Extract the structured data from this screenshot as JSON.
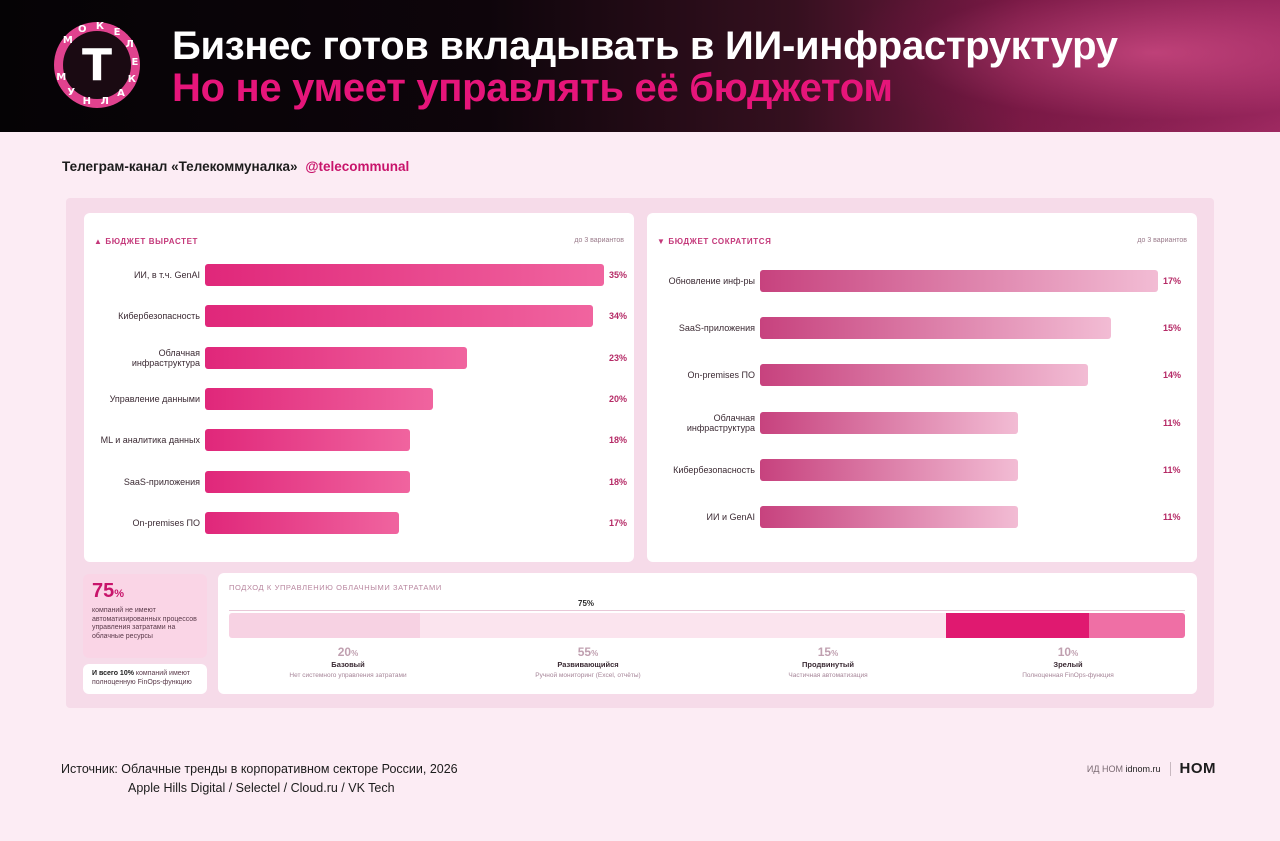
{
  "header": {
    "title": "Бизнес готов вкладывать в ИИ-инфраструктуру",
    "subtitle": "Но не умеет управлять её бюджетом",
    "logo_letter": "Т",
    "logo_ring": [
      "М",
      "О",
      "К",
      "Е",
      "Л",
      "Е",
      "К",
      "А",
      "Л",
      "Н",
      "У",
      "М"
    ]
  },
  "channel": {
    "text": "Телеграм-канал  «Телекоммуналка»",
    "handle": "@telecommunal"
  },
  "chart_data": [
    {
      "type": "bar",
      "title": "БЮДЖЕТ ВЫРАСТЕТ",
      "note": "до 3 вариантов",
      "categories": [
        "ИИ, в т.ч. GenAI",
        "Кибербезопасность",
        "Облачная\nинфраструктура",
        "Управление данными",
        "ML и аналитика данных",
        "SaaS-приложения",
        "On-premises ПО"
      ],
      "values": [
        35,
        34,
        23,
        20,
        18,
        18,
        17
      ],
      "labels": [
        "35%",
        "34%",
        "23%",
        "20%",
        "18%",
        "18%",
        "17%"
      ],
      "xlim": [
        0,
        35
      ]
    },
    {
      "type": "bar",
      "title": "БЮДЖЕТ СОКРАТИТСЯ",
      "note": "до 3 вариантов",
      "categories": [
        "Обновление инф-ры",
        "SaaS-приложения",
        "On-premises ПО",
        "Облачная\nинфраструктура",
        "Кибербезопасность",
        "ИИ и GenAI"
      ],
      "values": [
        17,
        15,
        14,
        11,
        11,
        11
      ],
      "labels": [
        "17%",
        "15%",
        "14%",
        "11%",
        "11%",
        "11%"
      ],
      "xlim": [
        0,
        17
      ]
    },
    {
      "type": "bar",
      "title": "ПОДХОД К УПРАВЛЕНИЮ ОБЛАЧНЫМИ ЗАТРАТАМИ",
      "bracket_label": "75%",
      "stages": [
        {
          "pct": "20",
          "unit": "%",
          "name": "Базовый",
          "desc": "Нет системного управления затратами",
          "value": 20,
          "color": "#f7d2e3"
        },
        {
          "pct": "55",
          "unit": "%",
          "name": "Развивающийся",
          "desc": "Ручной мониторинг (Excel, отчёты)",
          "value": 55,
          "color": "#fbe4ee"
        },
        {
          "pct": "15",
          "unit": "%",
          "name": "Продвинутый",
          "desc": "Частичная автоматизация",
          "value": 15,
          "color": "#e01970"
        },
        {
          "pct": "10",
          "unit": "%",
          "name": "Зрелый",
          "desc": "Полноценная FinOps-функция",
          "value": 10,
          "color": "#ef6fa5"
        }
      ]
    }
  ],
  "stats": {
    "big_value": "75",
    "big_unit": "%",
    "big_desc": "компаний не имеют автоматизированных процессов управления затратами на облачные ресурсы",
    "small_lead": "И всего 10%",
    "small_rest": " компаний имеют полноценную FinOps-функцию"
  },
  "source": {
    "line1": "Источник: Облачные тренды в корпоративном секторе России, 2026",
    "line2": "Apple Hills Digital / Selectel / Cloud.ru / VK Tech"
  },
  "footer": {
    "publisher_prefix": "ИД НОМ",
    "publisher_site": "idnom.ru",
    "brand": "НОМ"
  }
}
